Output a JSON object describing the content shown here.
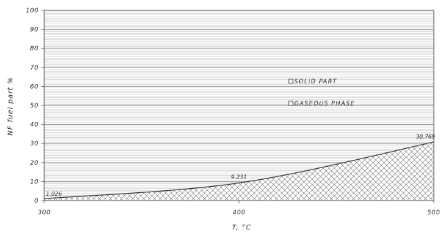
{
  "chart_data": {
    "type": "area",
    "title": "",
    "xlabel": "T, °C",
    "ylabel": "NF fuel part %",
    "x": [
      300,
      400,
      500
    ],
    "xlim": [
      300,
      500
    ],
    "ylim": [
      0,
      100
    ],
    "x_ticks": [
      "300",
      "400",
      "500"
    ],
    "y_ticks": [
      "0",
      "10",
      "20",
      "30",
      "40",
      "50",
      "60",
      "70",
      "80",
      "90",
      "100"
    ],
    "grid": true,
    "series": [
      {
        "name": "SOLID PART",
        "values": [
          1.026,
          9.231,
          30.769
        ],
        "fill": "crosshatch"
      },
      {
        "name": "GASEOUS PHASE",
        "values": [
          100,
          100,
          100
        ],
        "fill": "horizontal-lines"
      }
    ],
    "data_labels": [
      "1.026",
      "9.231",
      "30.769"
    ],
    "legend": [
      "SOLID PART",
      "GASEOUS PHASE"
    ],
    "legend_position": "center-right",
    "colors": {
      "line": "#333333",
      "grid": "#9a9a9a",
      "hatch": "#666666"
    }
  }
}
